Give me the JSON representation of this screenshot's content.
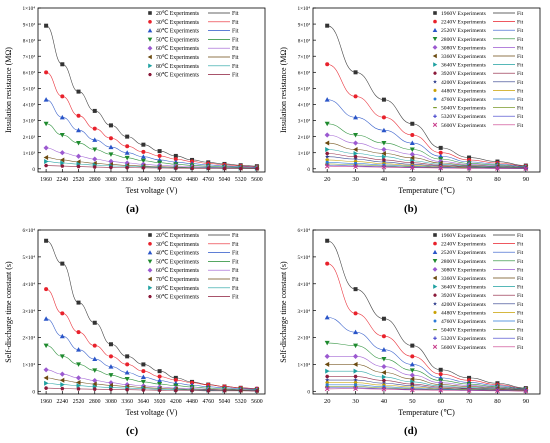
{
  "chart_data": [
    {
      "panel_label": "(a)",
      "type": "scatter",
      "xlabel": "Test voltage (V)",
      "ylabel": "Insulation resistance (MΩ)",
      "x": [
        1960,
        2240,
        2520,
        2800,
        3080,
        3360,
        3640,
        3920,
        4200,
        4480,
        4760,
        5040,
        5320,
        5600
      ],
      "xticks": [
        "1960",
        "2240",
        "2520",
        "2800",
        "3080",
        "3360",
        "3640",
        "3920",
        "4200",
        "4480",
        "4760",
        "5040",
        "5320",
        "5600"
      ],
      "ylim": [
        -0.2,
        10
      ],
      "yticks": [
        {
          "v": 0,
          "t": "0"
        },
        {
          "v": 1,
          "t": "1×10³"
        },
        {
          "v": 2,
          "t": "2×10³"
        },
        {
          "v": 3,
          "t": "3×10³"
        },
        {
          "v": 4,
          "t": "4×10³"
        },
        {
          "v": 5,
          "t": "5×10³"
        },
        {
          "v": 6,
          "t": "6×10³"
        },
        {
          "v": 7,
          "t": "7×10³"
        },
        {
          "v": 8,
          "t": "8×10³"
        },
        {
          "v": 9,
          "t": "9×10³"
        },
        {
          "v": 10,
          "t": "1×10⁴"
        }
      ],
      "fit_label": "Fit",
      "series": [
        {
          "name": "20℃ Experiments",
          "color": "#333333",
          "marker": "square",
          "values": [
            8.9,
            6.5,
            4.8,
            3.6,
            2.7,
            2.0,
            1.5,
            1.1,
            0.8,
            0.55,
            0.4,
            0.3,
            0.22,
            0.16
          ]
        },
        {
          "name": "30℃ Experiments",
          "color": "#e8212b",
          "marker": "circle",
          "values": [
            6.0,
            4.5,
            3.3,
            2.5,
            1.9,
            1.4,
            1.05,
            0.8,
            0.6,
            0.45,
            0.33,
            0.25,
            0.18,
            0.13
          ]
        },
        {
          "name": "40℃ Experiments",
          "color": "#2a55c8",
          "marker": "triangle-up",
          "values": [
            4.3,
            3.2,
            2.4,
            1.8,
            1.35,
            1.0,
            0.75,
            0.55,
            0.42,
            0.32,
            0.24,
            0.18,
            0.13,
            0.1
          ]
        },
        {
          "name": "50℃ Experiments",
          "color": "#1e8a2e",
          "marker": "triangle-down",
          "values": [
            2.8,
            2.1,
            1.6,
            1.2,
            0.9,
            0.68,
            0.5,
            0.38,
            0.28,
            0.21,
            0.16,
            0.12,
            0.09,
            0.07
          ]
        },
        {
          "name": "60℃ Experiments",
          "color": "#9b59d0",
          "marker": "diamond",
          "values": [
            1.3,
            1.0,
            0.78,
            0.6,
            0.46,
            0.36,
            0.28,
            0.22,
            0.17,
            0.13,
            0.1,
            0.08,
            0.06,
            0.05
          ]
        },
        {
          "name": "70℃ Experiments",
          "color": "#6b4a10",
          "marker": "triangle-left",
          "values": [
            0.7,
            0.55,
            0.43,
            0.34,
            0.27,
            0.21,
            0.17,
            0.13,
            0.1,
            0.08,
            0.06,
            0.05,
            0.04,
            0.03
          ]
        },
        {
          "name": "80℃ Experiments",
          "color": "#1fa0a0",
          "marker": "triangle-right",
          "values": [
            0.45,
            0.36,
            0.29,
            0.23,
            0.18,
            0.15,
            0.12,
            0.09,
            0.07,
            0.06,
            0.05,
            0.04,
            0.03,
            0.02
          ]
        },
        {
          "name": "90℃ Experiments",
          "color": "#8b1a3a",
          "marker": "hexagon",
          "values": [
            0.2,
            0.17,
            0.14,
            0.11,
            0.09,
            0.07,
            0.06,
            0.05,
            0.04,
            0.03,
            0.03,
            0.02,
            0.02,
            0.01
          ]
        }
      ]
    },
    {
      "panel_label": "(b)",
      "type": "scatter",
      "xlabel": "Temperature (℃)",
      "ylabel": "Insulation resistance (MΩ)",
      "x": [
        20,
        30,
        40,
        50,
        60,
        70,
        80,
        90
      ],
      "xticks": [
        "20",
        "30",
        "40",
        "50",
        "60",
        "70",
        "80",
        "90"
      ],
      "xlim": [
        15,
        95
      ],
      "ylim": [
        -0.2,
        10
      ],
      "yticks": [
        {
          "v": 0,
          "t": "0"
        },
        {
          "v": 1,
          "t": "1×10³"
        },
        {
          "v": 2,
          "t": "2×10³"
        },
        {
          "v": 3,
          "t": "3×10³"
        },
        {
          "v": 4,
          "t": "4×10³"
        },
        {
          "v": 5,
          "t": "5×10³"
        },
        {
          "v": 6,
          "t": "6×10³"
        },
        {
          "v": 7,
          "t": "7×10³"
        },
        {
          "v": 8,
          "t": "8×10³"
        },
        {
          "v": 9,
          "t": "9×10³"
        },
        {
          "v": 10,
          "t": "1×10⁴"
        }
      ],
      "fit_label": "Fit",
      "series": [
        {
          "name": "1960V Experiments",
          "color": "#333333",
          "marker": "square",
          "values": [
            8.9,
            6.0,
            4.3,
            2.8,
            1.3,
            0.7,
            0.45,
            0.2
          ]
        },
        {
          "name": "2240V Experiments",
          "color": "#e8212b",
          "marker": "circle",
          "values": [
            6.5,
            4.5,
            3.2,
            2.1,
            1.0,
            0.55,
            0.36,
            0.17
          ]
        },
        {
          "name": "2520V Experiments",
          "color": "#2a55c8",
          "marker": "triangle-up",
          "values": [
            4.3,
            3.2,
            2.4,
            1.6,
            0.78,
            0.43,
            0.29,
            0.14
          ]
        },
        {
          "name": "2800V Experiments",
          "color": "#1e8a2e",
          "marker": "triangle-down",
          "values": [
            2.8,
            2.1,
            1.6,
            1.2,
            0.6,
            0.34,
            0.23,
            0.11
          ]
        },
        {
          "name": "3080V Experiments",
          "color": "#9b59d0",
          "marker": "diamond",
          "values": [
            2.1,
            1.6,
            1.2,
            0.9,
            0.46,
            0.27,
            0.18,
            0.09
          ]
        },
        {
          "name": "3360V Experiments",
          "color": "#6b4a10",
          "marker": "triangle-left",
          "values": [
            1.6,
            1.2,
            0.95,
            0.68,
            0.36,
            0.21,
            0.15,
            0.07
          ]
        },
        {
          "name": "3640V Experiments",
          "color": "#1fa0a0",
          "marker": "triangle-right",
          "values": [
            1.2,
            0.95,
            0.75,
            0.5,
            0.28,
            0.17,
            0.12,
            0.06
          ]
        },
        {
          "name": "3920V Experiments",
          "color": "#8b1a3a",
          "marker": "hexagon",
          "values": [
            0.95,
            0.75,
            0.55,
            0.38,
            0.22,
            0.13,
            0.09,
            0.05
          ]
        },
        {
          "name": "4200V Experiments",
          "color": "#2b3a8a",
          "marker": "star",
          "values": [
            0.75,
            0.6,
            0.42,
            0.28,
            0.17,
            0.1,
            0.07,
            0.04
          ]
        },
        {
          "name": "4480V Experiments",
          "color": "#c8a000",
          "marker": "pentagon",
          "values": [
            0.55,
            0.45,
            0.32,
            0.21,
            0.13,
            0.08,
            0.06,
            0.03
          ]
        },
        {
          "name": "4760V Experiments",
          "color": "#2a7ad8",
          "marker": "circle-small",
          "values": [
            0.4,
            0.33,
            0.24,
            0.16,
            0.1,
            0.06,
            0.05,
            0.03
          ]
        },
        {
          "name": "5040V Experiments",
          "color": "#7a9a2a",
          "marker": "dash",
          "values": [
            0.3,
            0.25,
            0.18,
            0.12,
            0.08,
            0.05,
            0.04,
            0.02
          ]
        },
        {
          "name": "5320V Experiments",
          "color": "#3a3ac8",
          "marker": "cross",
          "values": [
            0.22,
            0.18,
            0.13,
            0.09,
            0.06,
            0.04,
            0.03,
            0.02
          ]
        },
        {
          "name": "5600V Experiments",
          "color": "#c83a8a",
          "marker": "x",
          "values": [
            0.16,
            0.13,
            0.1,
            0.07,
            0.05,
            0.03,
            0.02,
            0.01
          ]
        }
      ]
    },
    {
      "panel_label": "(c)",
      "type": "scatter",
      "xlabel": "Test voltage (V)",
      "ylabel": "Self-discharge time constant (s)",
      "x": [
        1960,
        2240,
        2520,
        2800,
        3080,
        3360,
        3640,
        3920,
        4200,
        4480,
        4760,
        5040,
        5320,
        5600
      ],
      "xticks": [
        "1960",
        "2240",
        "2520",
        "2800",
        "3080",
        "3360",
        "3640",
        "3920",
        "4200",
        "4480",
        "4760",
        "5040",
        "5320",
        "5600"
      ],
      "ylim": [
        -0.1,
        6
      ],
      "yticks": [
        {
          "v": 0,
          "t": "0"
        },
        {
          "v": 1,
          "t": "1×10⁴"
        },
        {
          "v": 2,
          "t": "2×10⁴"
        },
        {
          "v": 3,
          "t": "3×10⁴"
        },
        {
          "v": 4,
          "t": "4×10⁴"
        },
        {
          "v": 5,
          "t": "5×10⁴"
        },
        {
          "v": 6,
          "t": "6×10⁴"
        }
      ],
      "fit_label": "Fit",
      "series": [
        {
          "name": "20℃ Experiments",
          "color": "#333333",
          "marker": "square",
          "values": [
            5.6,
            4.75,
            3.3,
            2.55,
            1.75,
            1.3,
            1.0,
            0.75,
            0.5,
            0.35,
            0.25,
            0.18,
            0.13,
            0.09
          ]
        },
        {
          "name": "30℃ Experiments",
          "color": "#e8212b",
          "marker": "circle",
          "values": [
            3.8,
            2.9,
            2.2,
            1.7,
            1.3,
            1.0,
            0.75,
            0.55,
            0.42,
            0.32,
            0.24,
            0.18,
            0.13,
            0.1
          ]
        },
        {
          "name": "40℃ Experiments",
          "color": "#2a55c8",
          "marker": "triangle-up",
          "values": [
            2.7,
            2.05,
            1.55,
            1.2,
            0.92,
            0.7,
            0.53,
            0.4,
            0.3,
            0.23,
            0.17,
            0.13,
            0.1,
            0.08
          ]
        },
        {
          "name": "50℃ Experiments",
          "color": "#1e8a2e",
          "marker": "triangle-down",
          "values": [
            1.7,
            1.3,
            1.0,
            0.78,
            0.6,
            0.46,
            0.35,
            0.27,
            0.21,
            0.16,
            0.12,
            0.09,
            0.07,
            0.05
          ]
        },
        {
          "name": "60℃ Experiments",
          "color": "#9b59d0",
          "marker": "diamond",
          "values": [
            0.8,
            0.64,
            0.5,
            0.4,
            0.32,
            0.25,
            0.2,
            0.16,
            0.12,
            0.1,
            0.08,
            0.06,
            0.05,
            0.04
          ]
        },
        {
          "name": "70℃ Experiments",
          "color": "#6b4a10",
          "marker": "triangle-left",
          "values": [
            0.5,
            0.41,
            0.33,
            0.27,
            0.22,
            0.18,
            0.14,
            0.11,
            0.09,
            0.07,
            0.06,
            0.05,
            0.04,
            0.03
          ]
        },
        {
          "name": "80℃ Experiments",
          "color": "#1fa0a0",
          "marker": "triangle-right",
          "values": [
            0.3,
            0.25,
            0.21,
            0.17,
            0.14,
            0.12,
            0.1,
            0.08,
            0.06,
            0.05,
            0.04,
            0.03,
            0.03,
            0.02
          ]
        },
        {
          "name": "90℃ Experiments",
          "color": "#8b1a3a",
          "marker": "hexagon",
          "values": [
            0.12,
            0.1,
            0.09,
            0.08,
            0.07,
            0.06,
            0.05,
            0.04,
            0.03,
            0.03,
            0.02,
            0.02,
            0.02,
            0.01
          ]
        }
      ]
    },
    {
      "panel_label": "(d)",
      "type": "scatter",
      "xlabel": "Temperature (℃)",
      "ylabel": "Self-discharge time constant (s)",
      "x": [
        20,
        30,
        40,
        50,
        60,
        70,
        80,
        90
      ],
      "xticks": [
        "20",
        "30",
        "40",
        "50",
        "60",
        "70",
        "80",
        "90"
      ],
      "xlim": [
        15,
        95
      ],
      "ylim": [
        -0.1,
        6
      ],
      "yticks": [
        {
          "v": 0,
          "t": "0"
        },
        {
          "v": 1,
          "t": "1×10⁴"
        },
        {
          "v": 2,
          "t": "2×10⁴"
        },
        {
          "v": 3,
          "t": "3×10⁴"
        },
        {
          "v": 4,
          "t": "4×10⁴"
        },
        {
          "v": 5,
          "t": "5×10⁴"
        },
        {
          "v": 6,
          "t": "6×10⁴"
        }
      ],
      "fit_label": "Fit",
      "series": [
        {
          "name": "1960V Experiments",
          "color": "#333333",
          "marker": "square",
          "values": [
            5.6,
            3.8,
            2.7,
            1.7,
            0.8,
            0.5,
            0.3,
            0.12
          ]
        },
        {
          "name": "2240V Experiments",
          "color": "#e8212b",
          "marker": "circle",
          "values": [
            4.75,
            2.9,
            2.05,
            1.3,
            0.64,
            0.41,
            0.25,
            0.1
          ]
        },
        {
          "name": "2520V Experiments",
          "color": "#2a55c8",
          "marker": "triangle-up",
          "values": [
            2.75,
            2.2,
            1.55,
            1.0,
            0.5,
            0.33,
            0.21,
            0.09
          ]
        },
        {
          "name": "2800V Experiments",
          "color": "#1e8a2e",
          "marker": "triangle-down",
          "values": [
            1.8,
            1.7,
            1.2,
            0.78,
            0.4,
            0.27,
            0.17,
            0.08
          ]
        },
        {
          "name": "3080V Experiments",
          "color": "#9b59d0",
          "marker": "diamond",
          "values": [
            1.3,
            1.3,
            0.92,
            0.6,
            0.32,
            0.22,
            0.14,
            0.07
          ]
        },
        {
          "name": "3360V Experiments",
          "color": "#6b4a10",
          "marker": "triangle-left",
          "values": [
            1.0,
            1.0,
            0.7,
            0.46,
            0.25,
            0.18,
            0.12,
            0.06
          ]
        },
        {
          "name": "3640V Experiments",
          "color": "#1fa0a0",
          "marker": "triangle-right",
          "values": [
            0.75,
            0.75,
            0.53,
            0.35,
            0.2,
            0.14,
            0.1,
            0.05
          ]
        },
        {
          "name": "3920V Experiments",
          "color": "#8b1a3a",
          "marker": "hexagon",
          "values": [
            0.55,
            0.55,
            0.4,
            0.27,
            0.16,
            0.11,
            0.08,
            0.04
          ]
        },
        {
          "name": "4200V Experiments",
          "color": "#2b3a8a",
          "marker": "star",
          "values": [
            0.42,
            0.42,
            0.3,
            0.21,
            0.12,
            0.09,
            0.06,
            0.03
          ]
        },
        {
          "name": "4480V Experiments",
          "color": "#c8a000",
          "marker": "pentagon",
          "values": [
            0.32,
            0.32,
            0.23,
            0.16,
            0.1,
            0.07,
            0.05,
            0.03
          ]
        },
        {
          "name": "4760V Experiments",
          "color": "#2a7ad8",
          "marker": "circle-small",
          "values": [
            0.24,
            0.24,
            0.17,
            0.12,
            0.08,
            0.06,
            0.04,
            0.02
          ]
        },
        {
          "name": "5040V Experiments",
          "color": "#7a9a2a",
          "marker": "dash",
          "values": [
            0.18,
            0.18,
            0.13,
            0.09,
            0.06,
            0.05,
            0.03,
            0.02
          ]
        },
        {
          "name": "5320V Experiments",
          "color": "#3a3ac8",
          "marker": "cross",
          "values": [
            0.13,
            0.13,
            0.1,
            0.07,
            0.05,
            0.04,
            0.03,
            0.02
          ]
        },
        {
          "name": "5600V Experiments",
          "color": "#c83a8a",
          "marker": "x",
          "values": [
            0.09,
            0.1,
            0.08,
            0.05,
            0.04,
            0.03,
            0.02,
            0.01
          ]
        }
      ]
    }
  ]
}
